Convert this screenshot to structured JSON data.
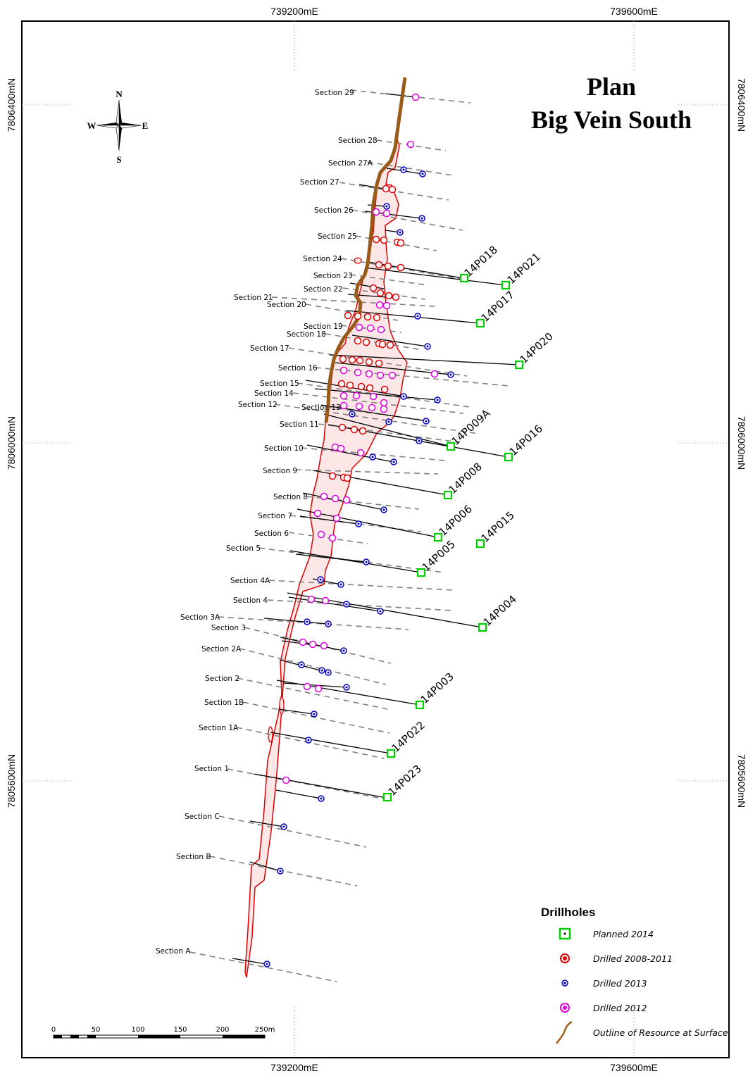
{
  "title": {
    "line1": "Plan",
    "line2": "Big Vein South"
  },
  "coords": {
    "easting": [
      "739200mE",
      "739600mE"
    ],
    "northing": [
      "7806400mN",
      "7806000mN",
      "7805600mN"
    ]
  },
  "compass": {
    "n": "N",
    "s": "S",
    "e": "E",
    "w": "W"
  },
  "scale_bar": {
    "labels": [
      "0",
      "50",
      "100",
      "150",
      "200",
      "250m"
    ]
  },
  "legend": {
    "title": "Drillholes",
    "items": [
      {
        "label": "Planned 2014",
        "symbol": "planned-square",
        "color": "#00e000"
      },
      {
        "label": "Drilled 2008-2011",
        "symbol": "circle",
        "color": "#e00000"
      },
      {
        "label": "Drilled 2013",
        "symbol": "circle-small",
        "color": "#0000c0"
      },
      {
        "label": "Drilled 2012",
        "symbol": "circle",
        "color": "#e000e0"
      },
      {
        "label": "Outline of Resource at Surface",
        "symbol": "line",
        "color": "#a0601a"
      }
    ]
  },
  "colors": {
    "ore_outline": "#e00000",
    "ore_fill": "#fde6e6",
    "outcrop": "#9a5a1a",
    "section_line": "#808080"
  },
  "sections": [
    "Section 29",
    "Section 28",
    "Section 27A",
    "Section 27",
    "Section 26",
    "Section 25",
    "Section 24",
    "Section 23",
    "Section 22",
    "Section 21",
    "Section 20",
    "Section 19",
    "Section 18",
    "Section 17",
    "Section 16",
    "Section 15",
    "Section 14",
    "Section 13",
    "Section 12",
    "Section 11",
    "Section 10",
    "Section 9",
    "Section 8",
    "Section 7",
    "Section 6",
    "Section 5",
    "Section 4A",
    "Section 4",
    "Section 3A",
    "Section 3",
    "Section 2A",
    "Section 2",
    "Section 1B",
    "Section 1A",
    "Section 1",
    "Section C",
    "Section B",
    "Section A"
  ],
  "planned_holes": [
    "14P018",
    "14P021",
    "14P017",
    "14P020",
    "14P009A",
    "14P016",
    "14P008",
    "14P006",
    "14P015",
    "14P005",
    "14P004",
    "14P003",
    "14P022",
    "14P023"
  ]
}
